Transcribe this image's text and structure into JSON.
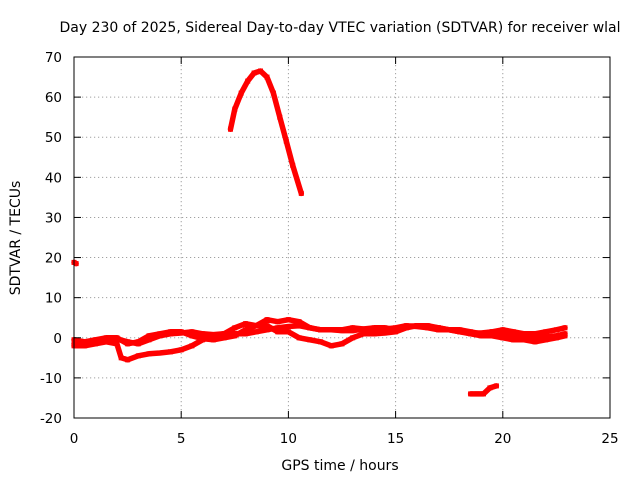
{
  "chart_data": {
    "type": "line",
    "title": "Day 230 of 2025, Sidereal Day-to-day VTEC variation (SDTVAR) for receiver wlal",
    "xlabel": "GPS time / hours",
    "ylabel": "SDTVAR / TECUs",
    "xlim": [
      0,
      25
    ],
    "ylim": [
      -20,
      70
    ],
    "xticks": [
      0,
      5,
      10,
      15,
      20,
      25
    ],
    "yticks": [
      -20,
      -10,
      0,
      10,
      20,
      30,
      40,
      50,
      60,
      70
    ],
    "grid": true,
    "legend": "none",
    "color": "#ff0000",
    "series": [
      {
        "name": "arc-a",
        "points": [
          [
            0,
            -1.5
          ],
          [
            0.5,
            -1.5
          ],
          [
            1,
            -0.8
          ],
          [
            1.5,
            -0.5
          ],
          [
            2,
            -0.3
          ],
          [
            2.5,
            -1
          ],
          [
            3,
            -1.5
          ],
          [
            3.5,
            -0.5
          ],
          [
            4,
            0.5
          ],
          [
            4.5,
            1
          ],
          [
            5,
            1.2
          ],
          [
            5.5,
            1.5
          ],
          [
            6,
            1
          ],
          [
            6.5,
            0.8
          ],
          [
            7,
            1
          ],
          [
            7.5,
            1
          ],
          [
            8,
            1
          ],
          [
            8.5,
            1.5
          ],
          [
            9,
            2
          ],
          [
            9.5,
            2.5
          ],
          [
            10,
            2.8
          ],
          [
            10.5,
            3
          ],
          [
            11,
            2.5
          ],
          [
            11.5,
            2
          ],
          [
            12,
            2
          ],
          [
            12.5,
            1.8
          ],
          [
            13,
            1.8
          ],
          [
            13.5,
            2.2
          ],
          [
            14,
            2.5
          ],
          [
            14.5,
            2.5
          ],
          [
            15,
            2
          ],
          [
            15.5,
            2.8
          ],
          [
            16,
            3
          ],
          [
            16.5,
            2.8
          ],
          [
            17,
            2.5
          ],
          [
            17.5,
            2
          ],
          [
            18,
            1.5
          ],
          [
            18.5,
            1.2
          ],
          [
            19,
            1.2
          ],
          [
            19.5,
            1.5
          ],
          [
            20,
            1
          ],
          [
            20.5,
            0.5
          ],
          [
            21,
            0.2
          ],
          [
            21.5,
            0
          ],
          [
            22,
            0.2
          ],
          [
            22.5,
            0.5
          ],
          [
            22.9,
            1
          ]
        ]
      },
      {
        "name": "arc-b",
        "points": [
          [
            0,
            -0.5
          ],
          [
            0.5,
            -1
          ],
          [
            1,
            -0.5
          ],
          [
            1.5,
            0
          ],
          [
            2,
            0
          ],
          [
            2.5,
            -1.5
          ],
          [
            3,
            -1
          ],
          [
            3.5,
            0.5
          ],
          [
            4,
            1
          ],
          [
            4.5,
            1.5
          ],
          [
            5,
            1.5
          ],
          [
            5.5,
            0.5
          ],
          [
            6,
            -0.2
          ],
          [
            6.5,
            -0.5
          ],
          [
            7,
            0
          ],
          [
            7.5,
            0.5
          ],
          [
            8,
            2
          ],
          [
            8.5,
            3
          ],
          [
            9,
            4.5
          ],
          [
            9.5,
            4
          ],
          [
            10,
            4.5
          ],
          [
            10.5,
            4
          ],
          [
            11,
            2.5
          ],
          [
            11.5,
            2
          ],
          [
            12,
            2
          ],
          [
            12.5,
            2
          ],
          [
            13,
            2.5
          ],
          [
            13.5,
            2.2
          ],
          [
            14,
            2
          ],
          [
            14.5,
            2.2
          ],
          [
            15,
            2.5
          ],
          [
            15.5,
            3
          ],
          [
            16,
            2.8
          ],
          [
            16.5,
            2.5
          ],
          [
            17,
            2
          ],
          [
            17.5,
            2
          ],
          [
            18,
            2
          ],
          [
            18.5,
            1.5
          ],
          [
            19,
            1
          ],
          [
            19.5,
            1.5
          ],
          [
            20,
            2
          ],
          [
            20.5,
            1.5
          ],
          [
            21,
            1
          ],
          [
            21.5,
            1
          ],
          [
            22,
            1.5
          ],
          [
            22.5,
            2
          ],
          [
            22.9,
            2.5
          ]
        ]
      },
      {
        "name": "arc-c",
        "points": [
          [
            0,
            -2
          ],
          [
            0.5,
            -2
          ],
          [
            1,
            -1.5
          ],
          [
            1.5,
            -1
          ],
          [
            2,
            -1.5
          ],
          [
            2.2,
            -5
          ],
          [
            2.5,
            -5.5
          ],
          [
            3,
            -4.5
          ],
          [
            3.5,
            -4
          ],
          [
            4,
            -3.8
          ],
          [
            4.5,
            -3.5
          ],
          [
            5,
            -3
          ],
          [
            5.5,
            -2
          ],
          [
            6,
            -0.5
          ],
          [
            6.5,
            0.5
          ],
          [
            7,
            1
          ],
          [
            7.5,
            2.5
          ],
          [
            8,
            3.5
          ],
          [
            8.5,
            3
          ],
          [
            9,
            3
          ],
          [
            9.5,
            1.5
          ],
          [
            10,
            1.5
          ],
          [
            10.5,
            0
          ],
          [
            11,
            -0.5
          ],
          [
            11.5,
            -1
          ],
          [
            12,
            -2
          ],
          [
            12.5,
            -1.5
          ],
          [
            13,
            0
          ],
          [
            13.5,
            1
          ],
          [
            14,
            1
          ],
          [
            14.5,
            1.2
          ],
          [
            15,
            1.5
          ],
          [
            15.5,
            2.5
          ],
          [
            16,
            3
          ],
          [
            16.5,
            3
          ],
          [
            17,
            2.5
          ],
          [
            17.5,
            2
          ],
          [
            18,
            1.5
          ],
          [
            18.5,
            1
          ],
          [
            19,
            0.5
          ],
          [
            19.5,
            0.5
          ],
          [
            20,
            0
          ],
          [
            20.5,
            -0.5
          ],
          [
            21,
            -0.5
          ],
          [
            21.5,
            -1
          ],
          [
            22,
            -0.5
          ],
          [
            22.5,
            0
          ],
          [
            22.9,
            0.5
          ]
        ]
      },
      {
        "name": "arc-d",
        "points": [
          [
            7.3,
            52
          ],
          [
            7.5,
            57
          ],
          [
            7.8,
            61
          ],
          [
            8.1,
            64
          ],
          [
            8.4,
            66
          ],
          [
            8.7,
            66.5
          ],
          [
            9.0,
            65
          ],
          [
            9.3,
            61
          ],
          [
            9.6,
            55
          ],
          [
            9.9,
            49
          ],
          [
            10.2,
            43
          ],
          [
            10.6,
            36
          ]
        ]
      },
      {
        "name": "arc-e",
        "points": [
          [
            18.5,
            -14
          ],
          [
            18.8,
            -14
          ],
          [
            19.1,
            -14
          ],
          [
            19.4,
            -12.5
          ],
          [
            19.7,
            -12
          ]
        ]
      },
      {
        "name": "arc-f",
        "points": [
          [
            0,
            18.8
          ],
          [
            0.1,
            18.5
          ]
        ]
      }
    ]
  }
}
